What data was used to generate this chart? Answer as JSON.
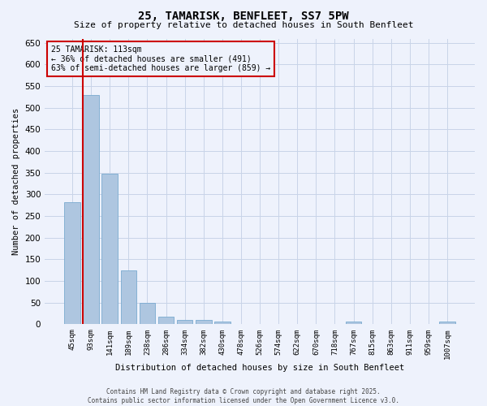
{
  "title": "25, TAMARISK, BENFLEET, SS7 5PW",
  "subtitle": "Size of property relative to detached houses in South Benfleet",
  "xlabel": "Distribution of detached houses by size in South Benfleet",
  "ylabel": "Number of detached properties",
  "categories": [
    "45sqm",
    "93sqm",
    "141sqm",
    "189sqm",
    "238sqm",
    "286sqm",
    "334sqm",
    "382sqm",
    "430sqm",
    "478sqm",
    "526sqm",
    "574sqm",
    "622sqm",
    "670sqm",
    "718sqm",
    "767sqm",
    "815sqm",
    "863sqm",
    "911sqm",
    "959sqm",
    "1007sqm"
  ],
  "values": [
    283,
    530,
    348,
    125,
    50,
    17,
    11,
    10,
    7,
    0,
    0,
    0,
    0,
    0,
    0,
    6,
    0,
    0,
    0,
    0,
    6
  ],
  "bar_color": "#aec6e0",
  "bar_edge_color": "#7aaad0",
  "background_color": "#eef2fc",
  "grid_color": "#c8d4e8",
  "vline_color": "#cc0000",
  "annotation_title": "25 TAMARISK: 113sqm",
  "annotation_line1": "← 36% of detached houses are smaller (491)",
  "annotation_line2": "63% of semi-detached houses are larger (859) →",
  "annotation_box_color": "#cc0000",
  "ylim": [
    0,
    660
  ],
  "yticks": [
    0,
    50,
    100,
    150,
    200,
    250,
    300,
    350,
    400,
    450,
    500,
    550,
    600,
    650
  ],
  "footer_line1": "Contains HM Land Registry data © Crown copyright and database right 2025.",
  "footer_line2": "Contains public sector information licensed under the Open Government Licence v3.0."
}
